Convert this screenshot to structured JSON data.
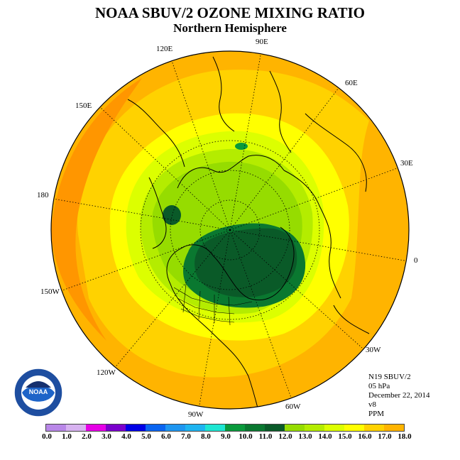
{
  "header": {
    "title": "NOAA SBUV/2 OZONE MIXING RATIO",
    "subtitle": "Northern Hemisphere"
  },
  "info": {
    "line1": "N19 SBUV/2",
    "line2": "05 hPa",
    "line3": "December 22, 2014",
    "line4": "v8",
    "line5": "PPM"
  },
  "longitude_labels": {
    "lon_90e": "90E",
    "lon_60e": "60E",
    "lon_30e": "30E",
    "lon_0": "0",
    "lon_30w": "30W",
    "lon_60w": "60W",
    "lon_90w": "90W",
    "lon_120w": "120W",
    "lon_150w": "150W",
    "lon_180": "180",
    "lon_150e": "150E",
    "lon_120e": "120E"
  },
  "logo": {
    "text": "NOAA"
  },
  "colorbar": {
    "colors": [
      "#b987e8",
      "#d7b2f0",
      "#e600e6",
      "#7a00cc",
      "#0000e6",
      "#0a64f0",
      "#1e96f0",
      "#1eb4f0",
      "#1ee6d2",
      "#0a9a3c",
      "#0a7830",
      "#0a5a28",
      "#96dc00",
      "#b4ec00",
      "#dcff00",
      "#ffff00",
      "#ffd200",
      "#ffb400",
      "#ff9600",
      "#ff5a00",
      "#e60000",
      "#b40000",
      "#8c5032"
    ],
    "ticks": [
      "0.0",
      "1.0",
      "2.0",
      "3.0",
      "4.0",
      "5.0",
      "6.0",
      "7.0",
      "8.0",
      "9.0",
      "10.0",
      "11.0",
      "12.0",
      "13.0",
      "14.0",
      "15.0",
      "16.0",
      "17.0",
      "18.0"
    ]
  }
}
